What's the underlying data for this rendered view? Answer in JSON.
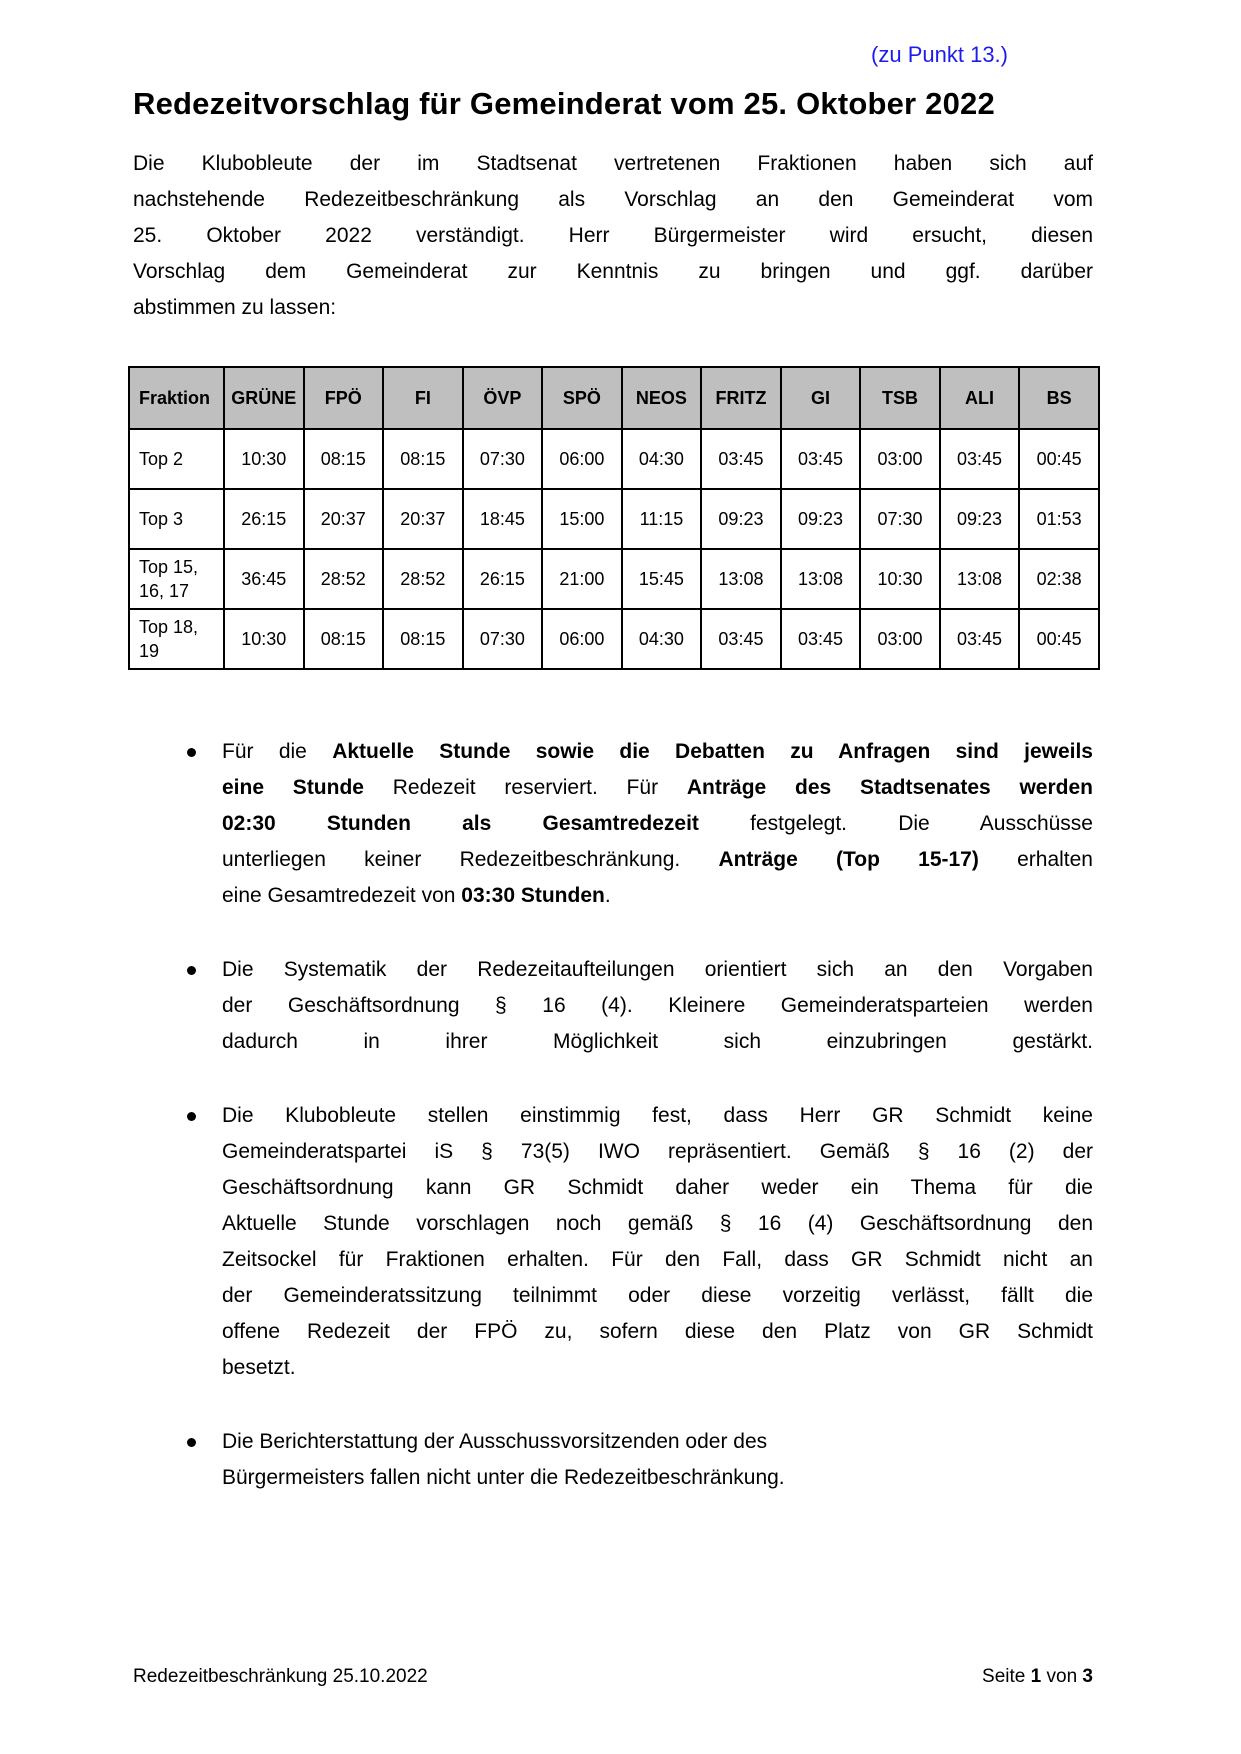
{
  "note": "(zu Punkt 13.)",
  "title": "Redezeitvorschlag für Gemeinderat vom 25. Oktober 2022",
  "intro": {
    "lines": [
      {
        "justify": true,
        "segments": [
          {
            "text": "Die Klubobleute der im Stadtsenat vertretenen Fraktionen haben sich auf",
            "bold": false
          }
        ]
      },
      {
        "justify": true,
        "segments": [
          {
            "text": "nachstehende Redezeitbeschränkung als Vorschlag an den Gemeinderat vom",
            "bold": false
          }
        ]
      },
      {
        "justify": true,
        "segments": [
          {
            "text": "25. Oktober 2022 verständigt. Herr Bürgermeister wird ersucht, diesen",
            "bold": false
          }
        ]
      },
      {
        "justify": true,
        "segments": [
          {
            "text": "Vorschlag dem Gemeinderat zur Kenntnis zu bringen und ggf. darüber",
            "bold": false
          }
        ]
      },
      {
        "justify": false,
        "segments": [
          {
            "text": "abstimmen zu lassen:",
            "bold": false
          }
        ]
      }
    ]
  },
  "table": {
    "headers": [
      "Fraktion",
      "GRÜNE",
      "FPÖ",
      "FI",
      "ÖVP",
      "SPÖ",
      "NEOS",
      "FRITZ",
      "GI",
      "TSB",
      "ALI",
      "BS"
    ],
    "rows": [
      {
        "label": "Top 2",
        "values": [
          "10:30",
          "08:15",
          "08:15",
          "07:30",
          "06:00",
          "04:30",
          "03:45",
          "03:45",
          "03:00",
          "03:45",
          "00:45"
        ]
      },
      {
        "label": "Top 3",
        "values": [
          "26:15",
          "20:37",
          "20:37",
          "18:45",
          "15:00",
          "11:15",
          "09:23",
          "09:23",
          "07:30",
          "09:23",
          "01:53"
        ]
      },
      {
        "label": "Top 15, 16, 17",
        "values": [
          "36:45",
          "28:52",
          "28:52",
          "26:15",
          "21:00",
          "15:45",
          "13:08",
          "13:08",
          "10:30",
          "13:08",
          "02:38"
        ]
      },
      {
        "label": "Top 18, 19",
        "values": [
          "10:30",
          "08:15",
          "08:15",
          "07:30",
          "06:00",
          "04:30",
          "03:45",
          "03:45",
          "03:00",
          "03:45",
          "00:45"
        ]
      }
    ]
  },
  "bullets": [
    {
      "lines": [
        {
          "justify": true,
          "segments": [
            {
              "text": "Für die ",
              "bold": false
            },
            {
              "text": "Aktuelle Stunde sowie die Debatten zu Anfragen sind jeweils",
              "bold": true
            }
          ]
        },
        {
          "justify": true,
          "segments": [
            {
              "text": "eine Stunde",
              "bold": true
            },
            {
              "text": " Redezeit reserviert. Für ",
              "bold": false
            },
            {
              "text": "Anträge des Stadtsenates werden",
              "bold": true
            }
          ]
        },
        {
          "justify": true,
          "segments": [
            {
              "text": "02:30 Stunden als Gesamtredezeit",
              "bold": true
            },
            {
              "text": " festgelegt. Die Ausschüsse",
              "bold": false
            }
          ]
        },
        {
          "justify": true,
          "segments": [
            {
              "text": "unterliegen keiner Redezeitbeschränkung. ",
              "bold": false
            },
            {
              "text": "Anträge (Top 15-17)",
              "bold": true
            },
            {
              "text": " erhalten",
              "bold": false
            }
          ]
        },
        {
          "justify": false,
          "segments": [
            {
              "text": "eine Gesamtredezeit von ",
              "bold": false
            },
            {
              "text": "03:30 Stunden",
              "bold": true
            },
            {
              "text": ".",
              "bold": false
            }
          ]
        }
      ]
    },
    {
      "lines": [
        {
          "justify": true,
          "segments": [
            {
              "text": "Die Systematik der Redezeitaufteilungen orientiert sich an den Vorgaben",
              "bold": false
            }
          ]
        },
        {
          "justify": true,
          "segments": [
            {
              "text": "der Geschäftsordnung § 16 (4). Kleinere Gemeinderatsparteien werden",
              "bold": false
            }
          ]
        },
        {
          "justify": true,
          "segments": [
            {
              "text": "dadurch in ihrer Möglichkeit sich einzubringen gestärkt.",
              "bold": false
            }
          ]
        }
      ]
    },
    {
      "lines": [
        {
          "justify": true,
          "segments": [
            {
              "text": "Die Klubobleute stellen einstimmig fest, dass Herr GR Schmidt keine",
              "bold": false
            }
          ]
        },
        {
          "justify": true,
          "segments": [
            {
              "text": "Gemeinderatspartei iS § 73(5) IWO repräsentiert. Gemäß § 16 (2) der",
              "bold": false
            }
          ]
        },
        {
          "justify": true,
          "segments": [
            {
              "text": "Geschäftsordnung kann GR Schmidt daher weder ein Thema für die",
              "bold": false
            }
          ]
        },
        {
          "justify": true,
          "segments": [
            {
              "text": "Aktuelle Stunde vorschlagen noch gemäß § 16 (4) Geschäftsordnung den",
              "bold": false
            }
          ]
        },
        {
          "justify": true,
          "segments": [
            {
              "text": "Zeitsockel für Fraktionen erhalten. Für den Fall, dass GR Schmidt nicht an",
              "bold": false
            }
          ]
        },
        {
          "justify": true,
          "segments": [
            {
              "text": "der Gemeinderatssitzung teilnimmt oder diese vorzeitig verlässt, fällt die",
              "bold": false
            }
          ]
        },
        {
          "justify": true,
          "segments": [
            {
              "text": "offene Redezeit der FPÖ zu, sofern diese den Platz von GR Schmidt",
              "bold": false
            }
          ]
        },
        {
          "justify": false,
          "segments": [
            {
              "text": "besetzt.",
              "bold": false
            }
          ]
        }
      ]
    },
    {
      "lines": [
        {
          "justify": false,
          "segments": [
            {
              "text": "Die Berichterstattung der Ausschussvorsitzenden oder des",
              "bold": false
            }
          ]
        },
        {
          "justify": false,
          "segments": [
            {
              "text": "Bürgermeisters fallen nicht unter die Redezeitbeschränkung.",
              "bold": false
            }
          ]
        }
      ]
    }
  ],
  "footer": {
    "left": "Redezeitbeschränkung 25.10.2022",
    "right_parts": [
      {
        "text": "Seite ",
        "bold": false
      },
      {
        "text": "1",
        "bold": true
      },
      {
        "text": " von ",
        "bold": false
      },
      {
        "text": "3",
        "bold": true
      }
    ]
  },
  "colors": {
    "note_blue": "#1c1cef",
    "table_header_bg": "#bfbfbf",
    "text": "#000000"
  }
}
